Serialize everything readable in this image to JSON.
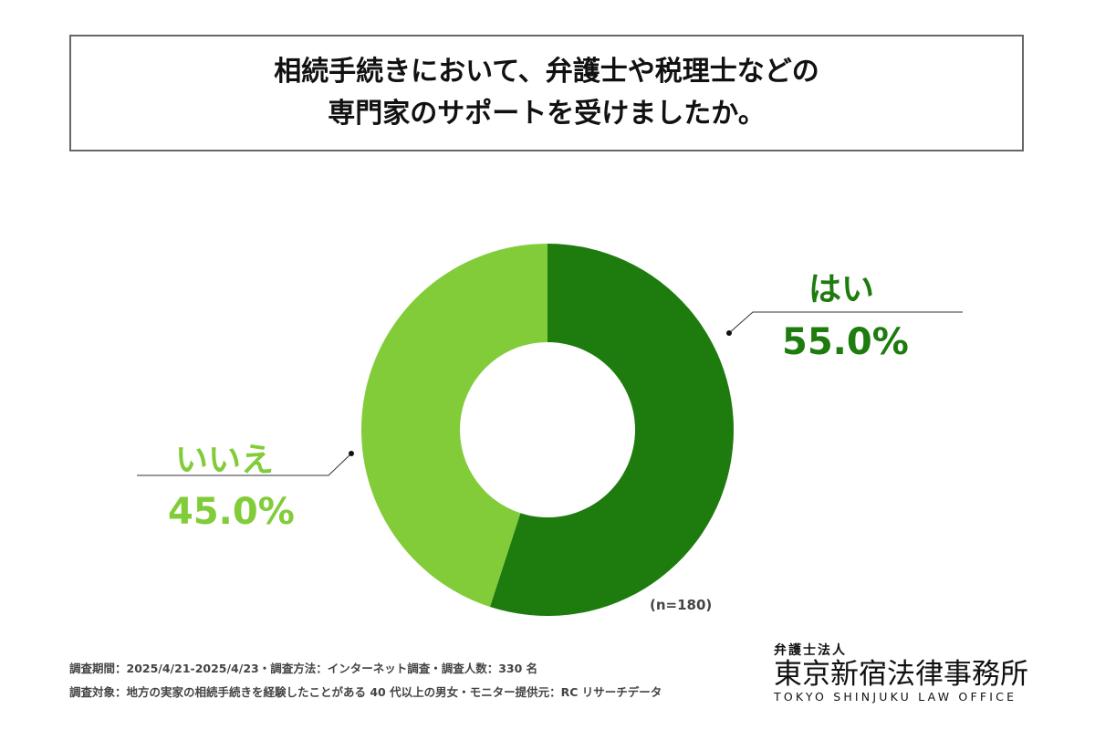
{
  "chart_data": {
    "type": "pie",
    "title_lines": [
      "相続手続きにおいて、弁護士や税理士などの",
      "専門家のサポートを受けましたか。"
    ],
    "slices": [
      {
        "label": "はい",
        "value": 55.0,
        "display": "55.0%",
        "color": "#1e7b0e"
      },
      {
        "label": "いいえ",
        "value": 45.0,
        "display": "45.0%",
        "color": "#82cc3a"
      }
    ],
    "donut": true,
    "start": "top-clockwise",
    "note": "(n=180)"
  },
  "footer": [
    "調査期間：2025/4/21-2025/4/23・調査方法：インターネット調査・調査人数：330 名",
    "調査対象：地方の実家の相続手続きを経験したことがある 40 代以上の男女・モニター提供元：RC リサーチデータ"
  ],
  "logo": {
    "small": "弁護士法人",
    "main": "東京新宿法律事務所",
    "en": "TOKYO SHINJUKU LAW OFFICE"
  }
}
